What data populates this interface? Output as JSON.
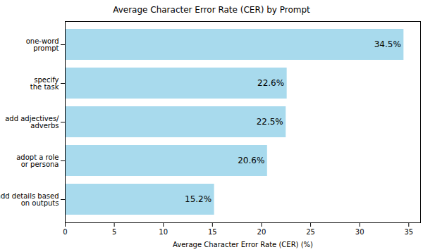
{
  "chart_data": {
    "type": "bar",
    "orientation": "horizontal",
    "title": "Average Character Error Rate (CER) by Prompt",
    "xlabel": "Average Character Error Rate (CER) (%)",
    "categories": [
      "one-word\nprompt",
      "specify\nthe task",
      "add adjectives/\nadverbs",
      "adopt a role\nor persona",
      "add details based\non outputs"
    ],
    "values": [
      34.5,
      22.6,
      22.5,
      20.6,
      15.2
    ],
    "value_labels": [
      "34.5%",
      "22.6%",
      "22.5%",
      "20.6%",
      "15.2%"
    ],
    "data_labels": true,
    "color": "#a8daed",
    "xlim": [
      0,
      36.2
    ],
    "xticks": [
      0,
      5,
      10,
      15,
      20,
      25,
      30,
      35
    ],
    "grid": false
  }
}
